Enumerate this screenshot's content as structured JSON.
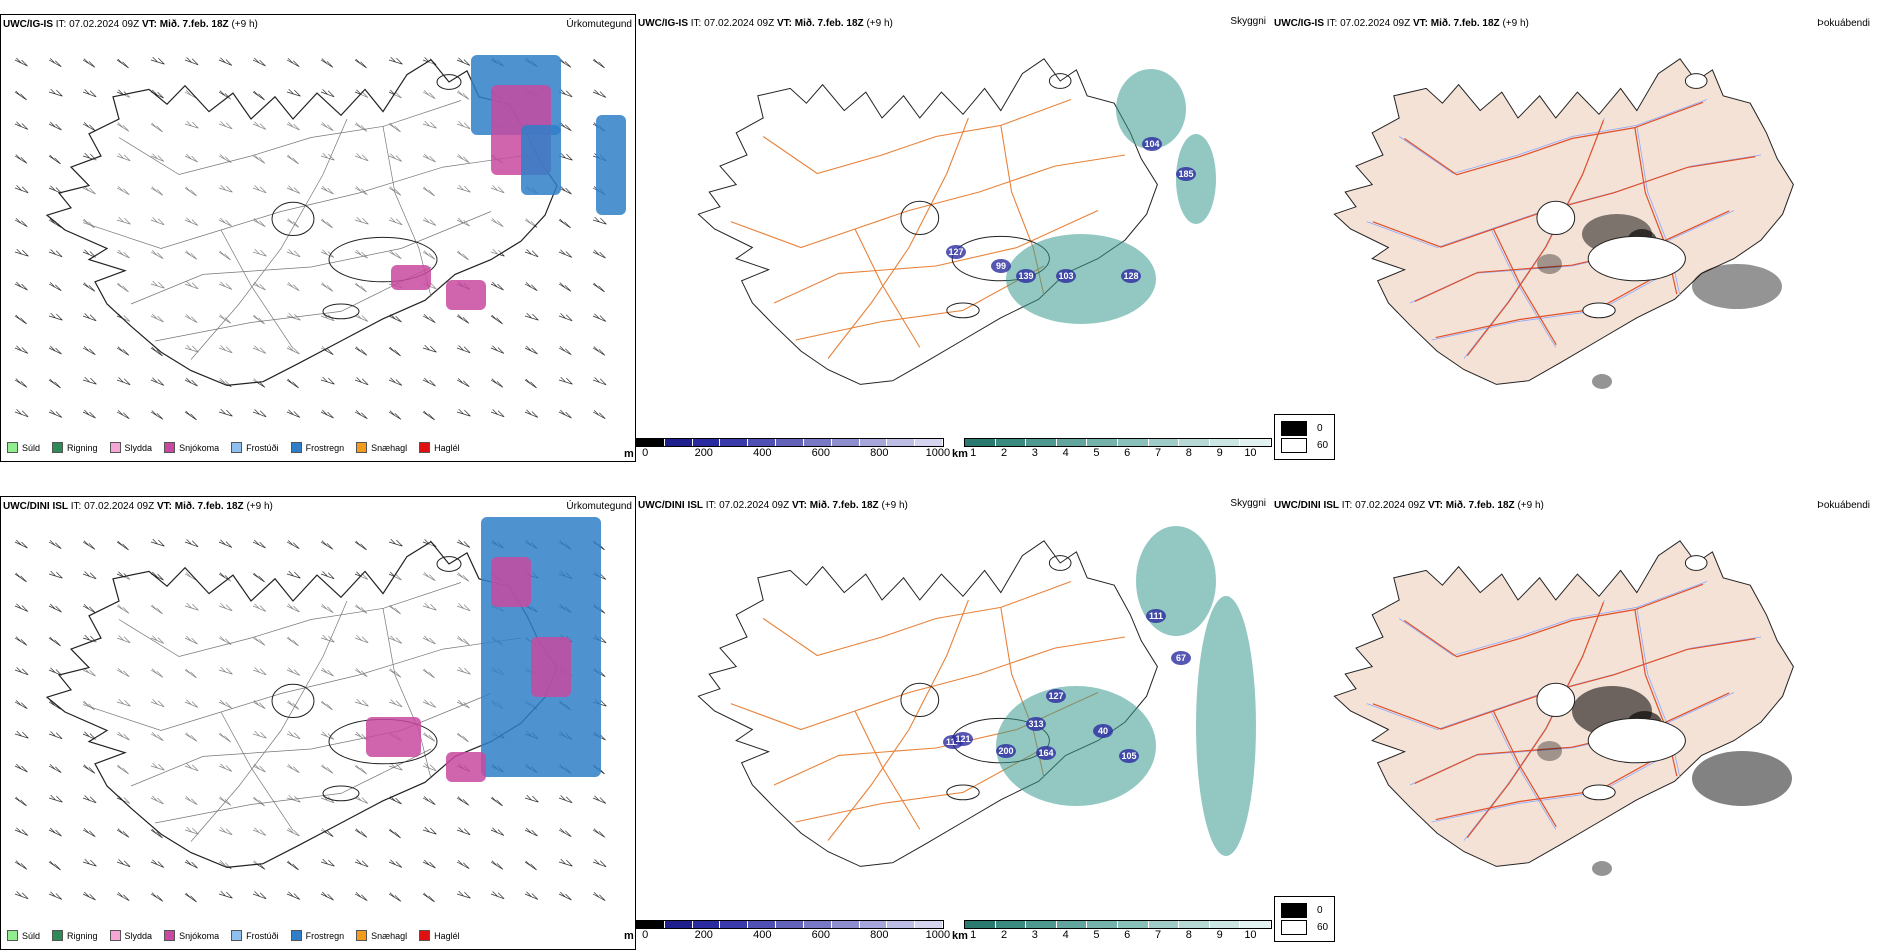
{
  "rows": [
    {
      "id": "igis",
      "precip": {
        "header_model": "UWC/IG-IS",
        "header_it_label": "IT:",
        "header_it": "07.02.2024 09Z",
        "header_vt_label": "VT:",
        "header_vt": "Mið. 7.feb. 18Z",
        "header_lead": "(+9 h)",
        "title": "Úrkomutegund"
      },
      "vis": {
        "header_model": "UWC/IG-IS",
        "header_it_label": "IT:",
        "header_it": "07.02.2024 09Z",
        "header_vt_label": "VT:",
        "header_vt": "Mið. 7.feb. 18Z",
        "header_lead": "(+9 h)",
        "title": "Skyggni",
        "labels": [
          "104",
          "185",
          "127",
          "139",
          "103",
          "128",
          "99"
        ]
      },
      "fog": {
        "header_model": "UWC/IG-IS",
        "header_it_label": "IT:",
        "header_it": "07.02.2024 09Z",
        "header_vt_label": "VT:",
        "header_vt": "Mið. 7.feb. 18Z",
        "header_lead": "(+9 h)",
        "title": "Þokuábendi"
      }
    },
    {
      "id": "dini",
      "precip": {
        "header_model": "UWC/DINI ISL",
        "header_it_label": "IT:",
        "header_it": "07.02.2024 09Z",
        "header_vt_label": "VT:",
        "header_vt": "Mið. 7.feb. 18Z",
        "header_lead": "(+9 h)",
        "title": "Úrkomutegund"
      },
      "vis": {
        "header_model": "UWC/DINI ISL",
        "header_it_label": "IT:",
        "header_it": "07.02.2024 09Z",
        "header_vt_label": "VT:",
        "header_vt": "Mið. 7.feb. 18Z",
        "header_lead": "(+9 h)",
        "title": "Skyggni",
        "labels": [
          "111",
          "67",
          "127",
          "313",
          "111",
          "200",
          "164",
          "105",
          "121",
          "40"
        ]
      },
      "fog": {
        "header_model": "UWC/DINI ISL",
        "header_it_label": "IT:",
        "header_it": "07.02.2024 09Z",
        "header_vt_label": "VT:",
        "header_vt": "Mið. 7.feb. 18Z",
        "header_lead": "(+9 h)",
        "title": "Þokuábendi"
      }
    }
  ],
  "precip_legend": [
    {
      "label": "Súld",
      "color": "#90ee90"
    },
    {
      "label": "Rigning",
      "color": "#2e8b57"
    },
    {
      "label": "Slydda",
      "color": "#f4a6d7"
    },
    {
      "label": "Snjókoma",
      "color": "#c84aa0"
    },
    {
      "label": "Frostúði",
      "color": "#8fbfef"
    },
    {
      "label": "Frostregn",
      "color": "#2f7fc8"
    },
    {
      "label": "Snæhagl",
      "color": "#f29b1d"
    },
    {
      "label": "Haglél",
      "color": "#e01010"
    }
  ],
  "ceiling_bar": {
    "unit": "m",
    "ticks": [
      "0",
      "200",
      "400",
      "600",
      "800",
      "1000"
    ],
    "colors": [
      "#000000",
      "#1e1e8c",
      "#2b2ba0",
      "#3a3aaa",
      "#5050b4",
      "#6262b8",
      "#7878c4",
      "#8e8ecf",
      "#a6a6da",
      "#bdbde6",
      "#d4d4f0"
    ]
  },
  "vis_bar": {
    "unit": "km",
    "ticks": [
      "1",
      "2",
      "3",
      "4",
      "5",
      "6",
      "7",
      "8",
      "9",
      "10"
    ],
    "colors": [
      "#2a7a70",
      "#3a8a80",
      "#4e9890",
      "#62a59e",
      "#76b2ac",
      "#8ac0ba",
      "#a0ccc8",
      "#b6d9d6",
      "#cce6e4",
      "#e2f2f1"
    ]
  },
  "fog_legend": [
    {
      "label": "0",
      "color": "#000000"
    },
    {
      "label": "60",
      "color": "#ffffff"
    }
  ],
  "colors": {
    "land_fog": "#f5e2d6",
    "roads": "#e8823a",
    "fog_roads": "#e0502a",
    "rivers": "#8aa8ff",
    "coast": "#222222",
    "vis_teal": "#3b9a90",
    "vis_blue": "#2c2ca0",
    "snow": "#c84aa0",
    "frz": "#2f7fc8"
  }
}
